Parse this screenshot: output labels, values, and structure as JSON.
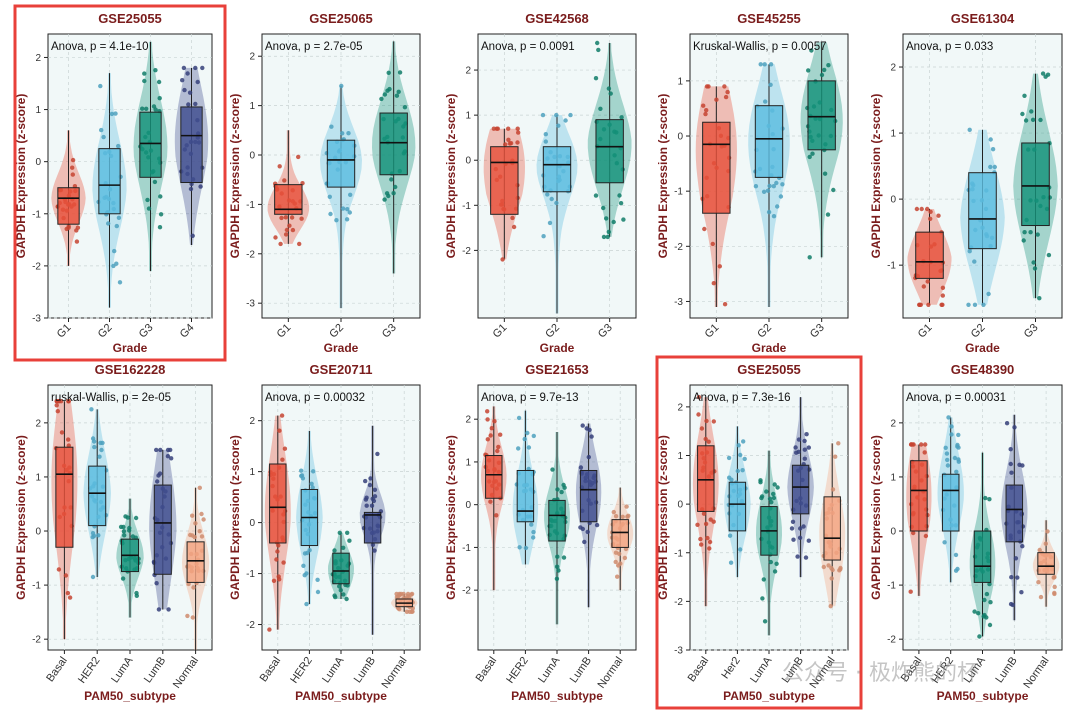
{
  "figure": {
    "watermark": "公众号 · 极炸熊的杯"
  },
  "chart_data": [
    {
      "type": "box",
      "title": "GSE25055",
      "stat": "Anova, p = 4.1e-10",
      "xlabel": "Grade",
      "ylabel": "GAPDH Expression (z-score)",
      "ylim": [
        -3,
        2.45
      ],
      "yticks": [
        -3,
        -2,
        -1,
        0,
        1,
        2
      ],
      "highlighted": true,
      "categories": [
        "G1",
        "G2",
        "G3",
        "G4"
      ],
      "colors": [
        "#e8503a",
        "#5bbde0",
        "#13937a",
        "#3f4d8f"
      ],
      "boxes": [
        {
          "q1": -1.2,
          "median": -0.7,
          "q3": -0.5,
          "min": -2,
          "max": 0.6
        },
        {
          "q1": -1,
          "median": -0.45,
          "q3": 0.25,
          "min": -2.8,
          "max": 1.7
        },
        {
          "q1": -0.3,
          "median": 0.35,
          "q3": 0.95,
          "min": -2.1,
          "max": 2.3
        },
        {
          "q1": -0.4,
          "median": 0.5,
          "q3": 1.05,
          "min": -1.6,
          "max": 1.8
        }
      ]
    },
    {
      "type": "box",
      "title": "GSE25065",
      "stat": "Anova, p = 2.7e-05",
      "xlabel": "Grade",
      "ylabel": "GAPDH Expression (z-score)",
      "ylim": [
        -3.3,
        2.45
      ],
      "yticks": [
        -3,
        -2,
        -1,
        0,
        1,
        2
      ],
      "highlighted": false,
      "categories": [
        "G1",
        "G2",
        "G3"
      ],
      "colors": [
        "#e8503a",
        "#5bbde0",
        "#13937a"
      ],
      "boxes": [
        {
          "q1": -1.2,
          "median": -1.1,
          "q3": -0.6,
          "min": -1.8,
          "max": 0.5
        },
        {
          "q1": -0.65,
          "median": -0.1,
          "q3": 0.3,
          "min": -3.1,
          "max": 1.4
        },
        {
          "q1": -0.4,
          "median": 0.25,
          "q3": 0.85,
          "min": -2.4,
          "max": 2.3
        }
      ]
    },
    {
      "type": "box",
      "title": "GSE42568",
      "stat": "Anova, p = 0.0091",
      "xlabel": "Grade",
      "ylabel": "GAPDH Expression (z-score)",
      "ylim": [
        -3.5,
        2.8
      ],
      "yticks": [
        -2,
        -1,
        0,
        1,
        2
      ],
      "highlighted": false,
      "categories": [
        "G1",
        "G2",
        "G3"
      ],
      "colors": [
        "#e8503a",
        "#5bbde0",
        "#13937a"
      ],
      "boxes": [
        {
          "q1": -1.2,
          "median": -0.05,
          "q3": 0.3,
          "min": -2.2,
          "max": 0.7
        },
        {
          "q1": -0.7,
          "median": -0.1,
          "q3": 0.3,
          "min": -3.4,
          "max": 1
        },
        {
          "q1": -0.5,
          "median": 0.3,
          "q3": 0.9,
          "min": -1.7,
          "max": 2.6
        }
      ]
    },
    {
      "type": "box",
      "title": "GSE45255",
      "stat": "Kruskal-Wallis, p = 0.0057",
      "xlabel": "Grade",
      "ylabel": "GAPDH Expression (z-score)",
      "ylim": [
        -3.3,
        1.85
      ],
      "yticks": [
        -3,
        -2,
        -1,
        0,
        1
      ],
      "highlighted": false,
      "categories": [
        "G1",
        "G2",
        "G3"
      ],
      "colors": [
        "#e8503a",
        "#5bbde0",
        "#13937a"
      ],
      "boxes": [
        {
          "q1": -1.4,
          "median": -0.15,
          "q3": 0.25,
          "min": -3.1,
          "max": 0.9
        },
        {
          "q1": -0.75,
          "median": -0.05,
          "q3": 0.55,
          "min": -3.1,
          "max": 1.3
        },
        {
          "q1": -0.25,
          "median": 0.35,
          "q3": 1,
          "min": -2.2,
          "max": 1.7
        }
      ]
    },
    {
      "type": "box",
      "title": "GSE61304",
      "stat": "Anova, p = 0.033",
      "xlabel": "Grade",
      "ylabel": "GAPDH Expression (z-score)",
      "ylim": [
        -1.8,
        2.5
      ],
      "yticks": [
        -1,
        0,
        1,
        2
      ],
      "highlighted": false,
      "categories": [
        "G1",
        "G2",
        "G3"
      ],
      "colors": [
        "#e8503a",
        "#5bbde0",
        "#13937a"
      ],
      "boxes": [
        {
          "q1": -1.2,
          "median": -0.95,
          "q3": -0.5,
          "min": -1.6,
          "max": -0.15
        },
        {
          "q1": -0.75,
          "median": -0.3,
          "q3": 0.4,
          "min": -1.6,
          "max": 1.05
        },
        {
          "q1": -0.4,
          "median": 0.2,
          "q3": 0.85,
          "min": -1.5,
          "max": 1.9
        }
      ]
    },
    {
      "type": "box",
      "title": "GSE162228",
      "stat": "ruskal-Wallis, p = 2e-05",
      "xlabel": "PAM50_subtype",
      "ylabel": "GAPDH Expression (z-score)",
      "ylim": [
        -2.2,
        2.7
      ],
      "yticks": [
        -2,
        -1,
        0,
        1,
        2
      ],
      "highlighted": false,
      "categories": [
        "Basal",
        "HER2",
        "LumA",
        "LumB",
        "Normal"
      ],
      "colors": [
        "#e8503a",
        "#5bbde0",
        "#13937a",
        "#3f4d8f",
        "#f4a582"
      ],
      "boxes": [
        {
          "q1": -0.3,
          "median": 1.05,
          "q3": 1.55,
          "min": -2,
          "max": 2.4
        },
        {
          "q1": 0.1,
          "median": 0.7,
          "q3": 1.2,
          "min": -0.85,
          "max": 2.25
        },
        {
          "q1": -0.75,
          "median": -0.45,
          "q3": -0.15,
          "min": -1.6,
          "max": 0.6
        },
        {
          "q1": -0.8,
          "median": 0.15,
          "q3": 0.85,
          "min": -1.45,
          "max": 1.5
        },
        {
          "q1": -0.95,
          "median": -0.55,
          "q3": -0.2,
          "min": -2.2,
          "max": 0.8
        }
      ]
    },
    {
      "type": "box",
      "title": "GSE20711",
      "stat": "Anova, p = 0.00032",
      "xlabel": "PAM50_subtype",
      "ylabel": "GAPDH Expression (z-score)",
      "ylim": [
        -2.5,
        2.7
      ],
      "yticks": [
        -2,
        -1,
        0,
        1,
        2
      ],
      "highlighted": false,
      "categories": [
        "Basal",
        "HER2",
        "LumA",
        "LumB",
        "Normal"
      ],
      "colors": [
        "#e8503a",
        "#5bbde0",
        "#13937a",
        "#3f4d8f",
        "#f4a582"
      ],
      "boxes": [
        {
          "q1": -0.4,
          "median": 0.3,
          "q3": 1.15,
          "min": -2.1,
          "max": 2.1
        },
        {
          "q1": -0.45,
          "median": 0.1,
          "q3": 0.65,
          "min": -1.6,
          "max": 1.8
        },
        {
          "q1": -1.2,
          "median": -0.95,
          "q3": -0.6,
          "min": -1.5,
          "max": -0.2
        },
        {
          "q1": -0.4,
          "median": 0.15,
          "q3": 0.2,
          "min": -2.2,
          "max": 1.9
        },
        {
          "q1": -1.65,
          "median": -1.58,
          "q3": -1.5,
          "min": -1.75,
          "max": -1.4
        }
      ]
    },
    {
      "type": "box",
      "title": "GSE21653",
      "stat": "Anova, p = 9.7e-13",
      "xlabel": "PAM50_subtype",
      "ylabel": "GAPDH Expression (z-score)",
      "ylim": [
        -3.4,
        2.8
      ],
      "yticks": [
        -2,
        -1,
        0,
        1,
        2
      ],
      "highlighted": false,
      "categories": [
        "Basal",
        "HER2",
        "LumA",
        "LumB",
        "Normal"
      ],
      "colors": [
        "#e8503a",
        "#5bbde0",
        "#13937a",
        "#3f4d8f",
        "#f4a582"
      ],
      "boxes": [
        {
          "q1": 0.15,
          "median": 0.7,
          "q3": 1.15,
          "min": -2,
          "max": 2.3
        },
        {
          "q1": -0.4,
          "median": -0.15,
          "q3": 0.8,
          "min": -1.4,
          "max": 2.2
        },
        {
          "q1": -0.85,
          "median": -0.25,
          "q3": 0.1,
          "min": -2.8,
          "max": 1.7
        },
        {
          "q1": -0.4,
          "median": 0.35,
          "q3": 0.8,
          "min": -2.4,
          "max": 1.9
        },
        {
          "q1": -1,
          "median": -0.65,
          "q3": -0.35,
          "min": -2,
          "max": 0.4
        }
      ]
    },
    {
      "type": "box",
      "title": "GSE25055",
      "stat": "Anova, p = 7.3e-16",
      "xlabel": "PAM50_subtype",
      "ylabel": "GAPDH Expression (z-score)",
      "ylim": [
        -3,
        2.45
      ],
      "yticks": [
        -3,
        -2,
        -1,
        0,
        1,
        2
      ],
      "highlighted": true,
      "categories": [
        "Basal",
        "Her2",
        "LumA",
        "LumB",
        "Normal"
      ],
      "colors": [
        "#e8503a",
        "#5bbde0",
        "#13937a",
        "#3f4d8f",
        "#f4a582"
      ],
      "boxes": [
        {
          "q1": -0.15,
          "median": 0.5,
          "q3": 1.2,
          "min": -2.1,
          "max": 2.2
        },
        {
          "q1": -0.55,
          "median": 0,
          "q3": 0.45,
          "min": -1.5,
          "max": 1.6
        },
        {
          "q1": -1.05,
          "median": -0.55,
          "q3": -0.05,
          "min": -2.7,
          "max": 1.1
        },
        {
          "q1": -0.2,
          "median": 0.35,
          "q3": 0.8,
          "min": -1.5,
          "max": 2.2
        },
        {
          "q1": -1.15,
          "median": -0.7,
          "q3": 0.15,
          "min": -2.1,
          "max": 1.25
        }
      ]
    },
    {
      "type": "box",
      "title": "GSE48390",
      "stat": "Anova, p = 0.00031",
      "xlabel": "PAM50_subtype",
      "ylabel": "GAPDH Expression (z-score)",
      "ylim": [
        -2.2,
        2.7
      ],
      "yticks": [
        -2,
        -1,
        0,
        1,
        2
      ],
      "highlighted": false,
      "categories": [
        "Basal",
        "HER2",
        "LumA",
        "LumB",
        "Normal"
      ],
      "colors": [
        "#e8503a",
        "#5bbde0",
        "#13937a",
        "#3f4d8f",
        "#f4a582"
      ],
      "boxes": [
        {
          "q1": 0,
          "median": 0.75,
          "q3": 1.3,
          "min": -1.2,
          "max": 1.6
        },
        {
          "q1": 0,
          "median": 0.75,
          "q3": 1.05,
          "min": -0.95,
          "max": 2.1
        },
        {
          "q1": -0.95,
          "median": -0.65,
          "q3": 0,
          "min": -1.95,
          "max": 1.45
        },
        {
          "q1": -0.2,
          "median": 0.4,
          "q3": 0.85,
          "min": -1.65,
          "max": 2.15
        },
        {
          "q1": -0.8,
          "median": -0.65,
          "q3": -0.4,
          "min": -1.4,
          "max": 0.2
        }
      ]
    }
  ]
}
